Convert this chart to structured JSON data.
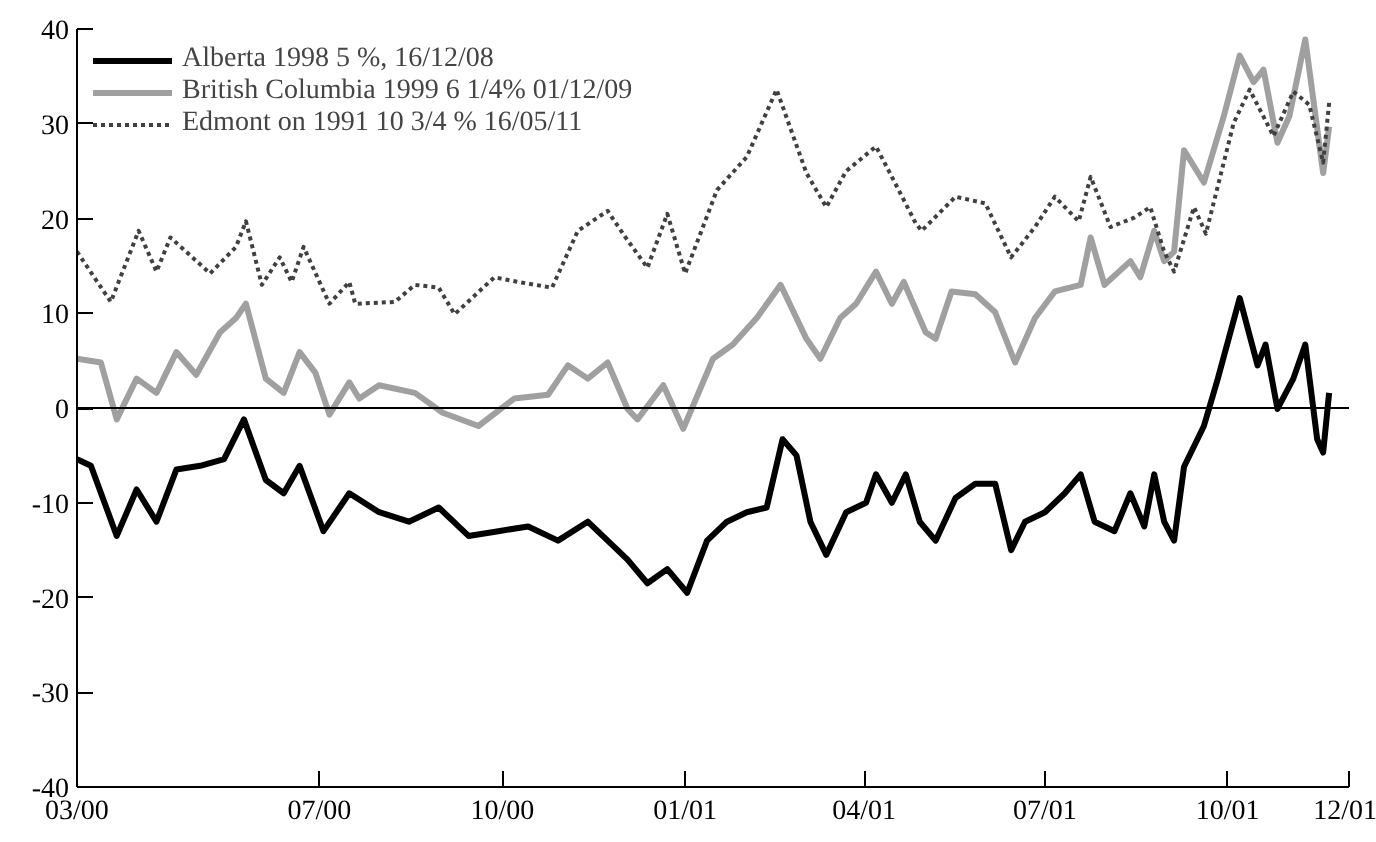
{
  "chart_data": {
    "type": "line",
    "xlim": [
      "2000-03-01",
      "2001-12-01"
    ],
    "xticks": [
      {
        "value": "2000-03-01",
        "label": "03/00"
      },
      {
        "value": "2000-07-01",
        "label": "07/00"
      },
      {
        "value": "2000-10-01",
        "label": "10/00"
      },
      {
        "value": "2001-01-01",
        "label": "01/01"
      },
      {
        "value": "2001-04-01",
        "label": "04/01"
      },
      {
        "value": "2001-07-01",
        "label": "07/01"
      },
      {
        "value": "2001-10-01",
        "label": "10/01"
      },
      {
        "value": "2001-12-01",
        "label": "12/01"
      }
    ],
    "ylim": [
      -40,
      40
    ],
    "yticks": [
      -40,
      -30,
      -20,
      -10,
      0,
      10,
      20,
      30,
      40
    ],
    "grid": false,
    "legend": "top left",
    "ref_lines": [
      {
        "axis": "y",
        "value": 0,
        "color": "#000000"
      }
    ],
    "series": [
      {
        "name": "Alberta 1998 5 %, 16/12/08",
        "color": "#000000",
        "line_style": "solid",
        "x": [
          "2000-03-01",
          "2000-03-08",
          "2000-03-21",
          "2000-03-31",
          "2000-04-10",
          "2000-04-20",
          "2000-05-02",
          "2000-05-14",
          "2000-05-24",
          "2000-06-04",
          "2000-06-13",
          "2000-06-21",
          "2000-07-03",
          "2000-07-16",
          "2000-07-31",
          "2000-08-15",
          "2000-08-30",
          "2000-09-14",
          "2000-09-29",
          "2000-10-14",
          "2000-10-29",
          "2000-11-13",
          "2000-11-23",
          "2000-12-03",
          "2000-12-13",
          "2000-12-23",
          "2001-01-02",
          "2001-01-12",
          "2001-01-22",
          "2001-02-01",
          "2001-02-11",
          "2001-02-19",
          "2001-02-26",
          "2001-03-05",
          "2001-03-13",
          "2001-03-23",
          "2001-04-02",
          "2001-04-07",
          "2001-04-15",
          "2001-04-22",
          "2001-04-29",
          "2001-05-07",
          "2001-05-17",
          "2001-05-27",
          "2001-06-06",
          "2001-06-14",
          "2001-06-21",
          "2001-07-01",
          "2001-07-11",
          "2001-07-19",
          "2001-07-26",
          "2001-08-05",
          "2001-08-13",
          "2001-08-20",
          "2001-08-25",
          "2001-08-30",
          "2001-09-04",
          "2001-09-09",
          "2001-09-19",
          "2001-09-26",
          "2001-10-07",
          "2001-10-16",
          "2001-10-20",
          "2001-10-26",
          "2001-11-03",
          "2001-11-09",
          "2001-11-15",
          "2001-11-18",
          "2001-11-21"
        ],
        "values": [
          -5.4,
          -6.1,
          -13.5,
          -8.6,
          -12,
          -6.5,
          -6.1,
          -5.4,
          -1.2,
          -7.6,
          -9,
          -6.1,
          -13,
          -9,
          -11,
          -12,
          -10.5,
          -13.5,
          -13,
          -12.5,
          -14,
          -12,
          -14,
          -16,
          -18.5,
          -17,
          -19.5,
          -14,
          -12,
          -11,
          -10.5,
          -3.3,
          -5,
          -12,
          -15.5,
          -11,
          -10,
          -7,
          -10,
          -7,
          -12,
          -14,
          -9.5,
          -8,
          -8,
          -15,
          -12,
          -11,
          -9,
          -7,
          -12,
          -13,
          -9,
          -12.5,
          -7,
          -12,
          -14,
          -6.2,
          -1.9,
          3.1,
          11.6,
          4.5,
          6.7,
          -0.1,
          3.1,
          6.7,
          -3.3,
          -4.7,
          1.6
        ]
      },
      {
        "name": "British Columbia 1999 6 1/4% 01/12/09",
        "color": "#a0a0a0",
        "line_style": "solid",
        "x": [
          "2000-03-01",
          "2000-03-13",
          "2000-03-21",
          "2000-03-31",
          "2000-04-10",
          "2000-04-20",
          "2000-04-30",
          "2000-05-12",
          "2000-05-20",
          "2000-05-25",
          "2000-06-04",
          "2000-06-13",
          "2000-06-21",
          "2000-06-29",
          "2000-07-06",
          "2000-07-16",
          "2000-07-21",
          "2000-07-31",
          "2000-08-18",
          "2000-09-01",
          "2000-09-19",
          "2000-10-07",
          "2000-10-24",
          "2000-11-03",
          "2000-11-13",
          "2000-11-23",
          "2000-12-03",
          "2000-12-08",
          "2000-12-21",
          "2000-12-31",
          "2001-01-15",
          "2001-01-25",
          "2001-02-06",
          "2001-02-18",
          "2001-03-03",
          "2001-03-10",
          "2001-03-20",
          "2001-03-28",
          "2001-04-07",
          "2001-04-15",
          "2001-04-21",
          "2001-05-02",
          "2001-05-07",
          "2001-05-15",
          "2001-05-27",
          "2001-06-06",
          "2001-06-16",
          "2001-06-26",
          "2001-07-06",
          "2001-07-19",
          "2001-07-24",
          "2001-07-31",
          "2001-08-13",
          "2001-08-18",
          "2001-08-25",
          "2001-08-30",
          "2001-09-04",
          "2001-09-09",
          "2001-09-19",
          "2001-09-29",
          "2001-10-07",
          "2001-10-14",
          "2001-10-19",
          "2001-10-26",
          "2001-11-01",
          "2001-11-09",
          "2001-11-18",
          "2001-11-21"
        ],
        "values": [
          5.2,
          4.8,
          -1.2,
          3.1,
          1.6,
          5.9,
          3.5,
          8,
          9.5,
          11,
          3.1,
          1.6,
          5.9,
          3.7,
          -0.7,
          2.7,
          1,
          2.4,
          1.6,
          -0.5,
          -1.9,
          1,
          1.4,
          4.5,
          3.1,
          4.8,
          -0.1,
          -1.2,
          2.4,
          -2.2,
          5.2,
          6.7,
          9.5,
          13,
          7.3,
          5.2,
          9.5,
          11,
          14.4,
          11,
          13.3,
          8,
          7.3,
          12.3,
          12,
          10.1,
          4.8,
          9.5,
          12.3,
          13,
          18,
          13,
          15.5,
          13.8,
          18.7,
          15.5,
          16.5,
          27.2,
          23.8,
          30.8,
          37.2,
          34.4,
          35.7,
          28,
          30.8,
          38.9,
          24.8,
          29.7
        ]
      },
      {
        "name": "Edmont on 1991 10 3/4 % 16/05/11",
        "color": "#404040",
        "line_style": "dotted",
        "x": [
          "2000-03-01",
          "2000-03-18",
          "2000-04-01",
          "2000-04-10",
          "2000-04-17",
          "2000-05-07",
          "2000-05-20",
          "2000-05-25",
          "2000-06-02",
          "2000-06-11",
          "2000-06-17",
          "2000-06-23",
          "2000-07-06",
          "2000-07-16",
          "2000-07-19",
          "2000-08-08",
          "2000-08-18",
          "2000-08-30",
          "2000-09-07",
          "2000-09-27",
          "2000-10-09",
          "2000-10-26",
          "2000-11-08",
          "2000-11-23",
          "2000-12-02",
          "2000-12-13",
          "2000-12-23",
          "2001-01-01",
          "2001-01-17",
          "2001-02-01",
          "2001-02-16",
          "2001-03-03",
          "2001-03-13",
          "2001-03-23",
          "2001-04-07",
          "2001-04-15",
          "2001-04-27",
          "2001-04-30",
          "2001-05-17",
          "2001-06-01",
          "2001-06-14",
          "2001-06-26",
          "2001-07-06",
          "2001-07-18",
          "2001-07-24",
          "2001-08-03",
          "2001-08-15",
          "2001-08-23",
          "2001-08-30",
          "2001-09-04",
          "2001-09-14",
          "2001-09-20",
          "2001-10-04",
          "2001-10-12",
          "2001-10-24",
          "2001-11-03",
          "2001-11-11",
          "2001-11-18",
          "2001-11-21"
        ],
        "values": [
          16.5,
          11.2,
          18.7,
          14.4,
          18,
          14.2,
          17,
          19.7,
          13,
          15.9,
          13.3,
          17,
          11,
          13.3,
          11,
          11.2,
          13,
          12.7,
          9.9,
          13.8,
          13.3,
          12.7,
          18.7,
          20.8,
          18,
          14.8,
          20.5,
          14.2,
          23,
          26.5,
          33.6,
          24.8,
          21.2,
          25,
          27.6,
          24.4,
          19.5,
          18.7,
          22.3,
          21.6,
          15.9,
          19.1,
          22.3,
          19.7,
          24.4,
          19.1,
          20.1,
          21.2,
          16.5,
          14.4,
          21.2,
          18.4,
          30.1,
          33.6,
          28.7,
          33.4,
          32,
          25.9,
          32.2
        ]
      }
    ]
  }
}
